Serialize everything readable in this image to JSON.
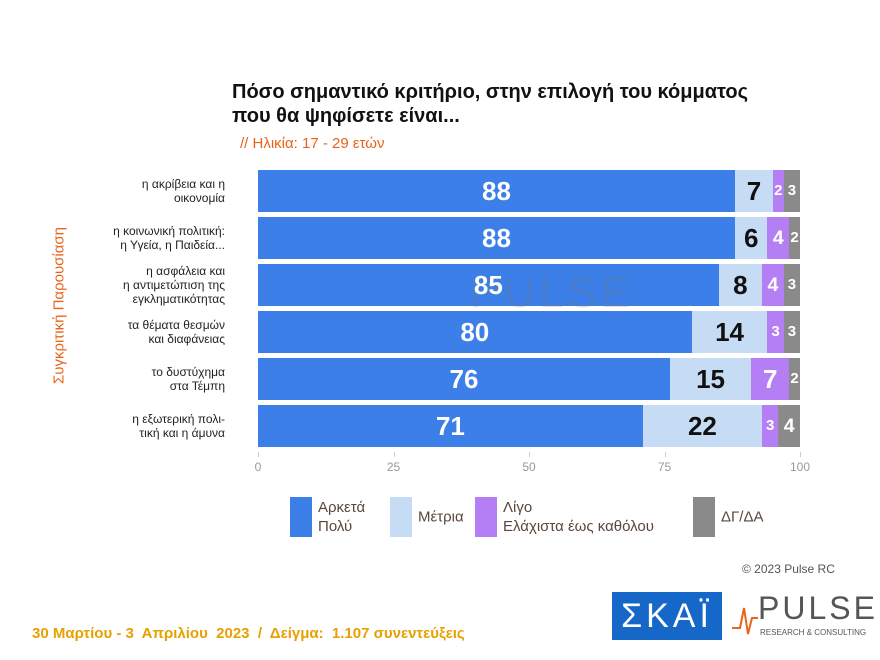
{
  "chart_data": {
    "type": "stacked-bar-horizontal",
    "title": "Πόσο σημαντικό κριτήριο, στην επιλογή του κόμματος\nπου θα ψηφίσετε είναι...",
    "subtitle": "// Ηλικία: 17 - 29 ετών",
    "y_label": "Συγκριτική Παρουσίαση",
    "categories": [
      "η ακρίβεια και η\nοικονομία",
      "η κοινωνική πολιτική:\nη Υγεία, η Παιδεία...",
      "η ασφάλεια και\nη αντιμετώπιση της\nεγκληματικότητας",
      "τα θέματα θεσμών\nκαι διαφάνειας",
      "το δυστύχημα\nστα Τέμπη",
      "η εξωτερική πολι-\nτική και η άμυνα"
    ],
    "series": [
      {
        "name": "Αρκετά\nΠολύ",
        "color": "#3d7fe8",
        "label_color": "#ffffff",
        "values": [
          88,
          88,
          85,
          80,
          76,
          71
        ]
      },
      {
        "name": "Μέτρια",
        "color": "#c6dcf5",
        "label_color": "#111111",
        "values": [
          7,
          6,
          8,
          14,
          15,
          22
        ]
      },
      {
        "name": "Λίγο\nΕλάχιστα έως καθόλου",
        "color": "#b47ef5",
        "label_color": "#ffffff",
        "values": [
          2,
          4,
          4,
          3,
          7,
          3
        ]
      },
      {
        "name": "ΔΓ/ΔΑ",
        "color": "#8a8a8a",
        "label_color": "#ffffff",
        "values": [
          3,
          2,
          3,
          3,
          2,
          4
        ]
      }
    ],
    "xlim": [
      0,
      100
    ],
    "xticks": [
      0,
      25,
      50,
      75,
      100
    ],
    "grid": false
  },
  "copyright": "© 2023 Pulse RC",
  "footer": "30 Μαρτίου - 3  Απριλίου  2023  /  Δείγμα:  1.107 συνεντεύξεις",
  "logos": {
    "skai": "ΣΚΑΪ",
    "pulse": "PULSE",
    "pulse_sub": "RESEARCH & CONSULTING"
  }
}
